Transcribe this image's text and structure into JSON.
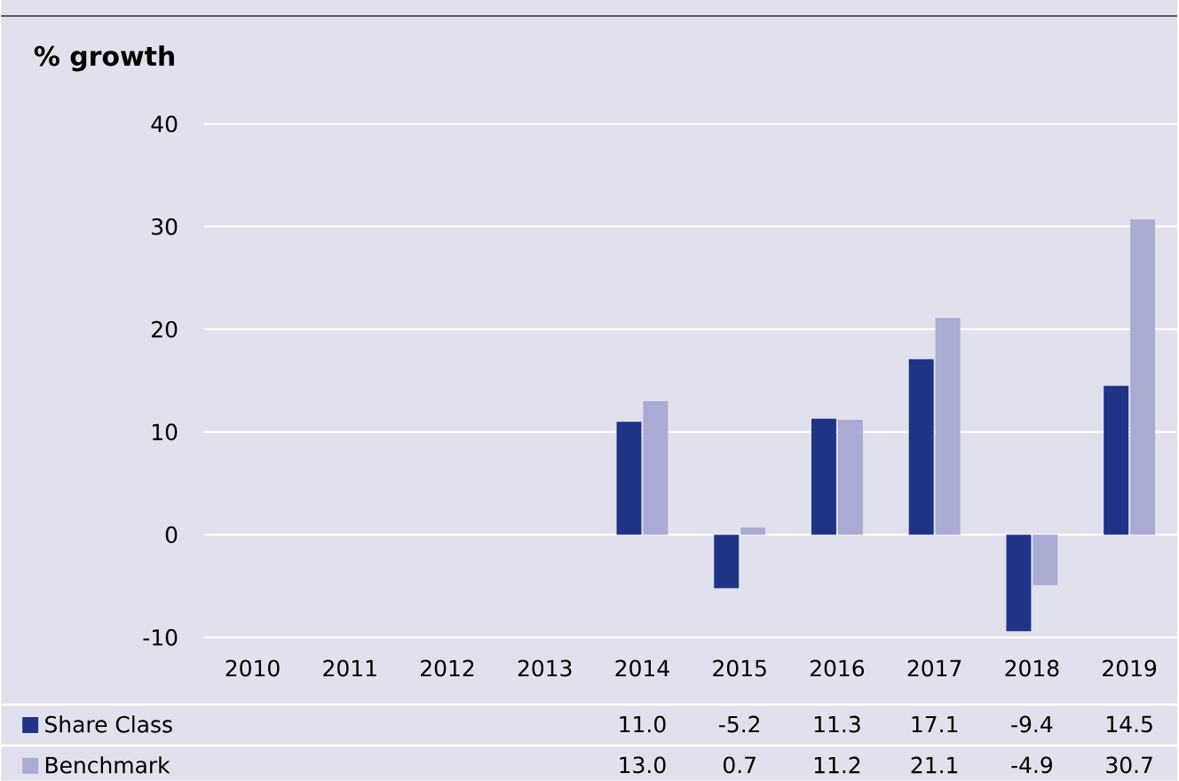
{
  "chart_data": {
    "type": "bar",
    "title": "% growth",
    "categories": [
      "2010",
      "2011",
      "2012",
      "2013",
      "2014",
      "2015",
      "2016",
      "2017",
      "2018",
      "2019"
    ],
    "series": [
      {
        "name": "Share Class",
        "color": "#1f3485",
        "values": [
          null,
          null,
          null,
          null,
          11.0,
          -5.2,
          11.3,
          17.1,
          -9.4,
          14.5
        ],
        "value_labels": [
          null,
          null,
          null,
          null,
          "11.0",
          "-5.2",
          "11.3",
          "17.1",
          "-9.4",
          "14.5"
        ]
      },
      {
        "name": "Benchmark",
        "color": "#a9abd3",
        "values": [
          null,
          null,
          null,
          null,
          13.0,
          0.7,
          11.2,
          21.1,
          -4.9,
          30.7
        ],
        "value_labels": [
          null,
          null,
          null,
          null,
          "13.0",
          "0.7",
          "11.2",
          "21.1",
          "-4.9",
          "30.7"
        ]
      }
    ],
    "ylim": [
      -10,
      40
    ],
    "yticks": [
      -10,
      0,
      10,
      20,
      30,
      40
    ],
    "grid": "y",
    "legend": "bottom left"
  }
}
